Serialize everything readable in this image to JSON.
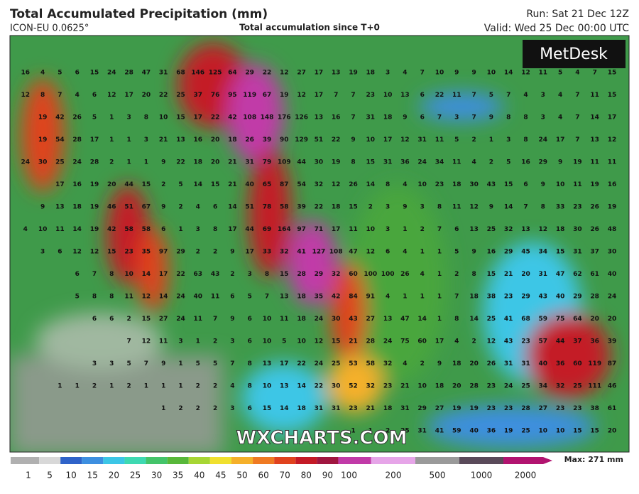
{
  "header": {
    "title": "Total Accumulated Precipitation (mm)",
    "model": "ICON-EU 0.0625°",
    "subtitle": "Total accumulation since T+0",
    "run": "Run: Sat 21 Dec 12Z",
    "valid": "Valid: Wed 25 Dec 00:00 UTC"
  },
  "logo": "MetDesk",
  "watermark": "WXCHARTS.COM",
  "grid": [
    [
      16,
      4,
      5,
      6,
      15,
      24,
      28,
      47,
      31,
      68,
      146,
      125,
      64,
      29,
      22,
      12,
      27,
      17,
      13,
      19,
      18,
      3,
      4,
      7,
      10,
      9,
      9,
      10,
      14,
      12,
      11,
      5,
      4,
      7,
      15
    ],
    [
      12,
      8,
      7,
      4,
      6,
      12,
      17,
      20,
      22,
      25,
      37,
      76,
      95,
      119,
      67,
      19,
      12,
      17,
      7,
      7,
      23,
      10,
      13,
      6,
      22,
      11,
      7,
      5,
      7,
      4,
      3,
      4,
      7,
      11,
      15
    ],
    [
      19,
      42,
      26,
      5,
      1,
      3,
      8,
      10,
      15,
      17,
      22,
      42,
      108,
      148,
      176,
      126,
      13,
      16,
      7,
      31,
      18,
      9,
      6,
      7,
      3,
      7,
      9,
      8,
      8,
      3,
      4,
      7,
      14,
      17
    ],
    [
      19,
      54,
      28,
      17,
      1,
      1,
      3,
      21,
      13,
      16,
      20,
      18,
      26,
      39,
      90,
      129,
      51,
      22,
      9,
      10,
      17,
      12,
      31,
      11,
      5,
      2,
      1,
      3,
      8,
      24,
      17,
      7,
      13,
      12
    ],
    [
      24,
      30,
      25,
      24,
      28,
      2,
      1,
      1,
      9,
      22,
      18,
      20,
      21,
      31,
      79,
      109,
      44,
      30,
      19,
      8,
      15,
      31,
      36,
      24,
      34,
      11,
      4,
      2,
      5,
      16,
      29,
      9,
      19,
      11,
      11
    ],
    [
      17,
      16,
      19,
      20,
      44,
      15,
      2,
      5,
      14,
      15,
      21,
      40,
      65,
      87,
      54,
      32,
      12,
      26,
      14,
      8,
      4,
      10,
      23,
      18,
      30,
      43,
      15,
      6,
      9,
      10,
      11,
      19,
      16
    ],
    [
      9,
      13,
      18,
      19,
      46,
      51,
      67,
      9,
      2,
      4,
      6,
      14,
      51,
      78,
      58,
      39,
      22,
      18,
      15,
      2,
      3,
      9,
      3,
      8,
      11,
      12,
      9,
      14,
      7,
      8,
      33,
      23,
      26,
      19
    ],
    [
      4,
      10,
      11,
      14,
      19,
      42,
      58,
      58,
      6,
      1,
      3,
      8,
      17,
      44,
      69,
      164,
      97,
      71,
      17,
      11,
      10,
      3,
      1,
      2,
      7,
      6,
      13,
      25,
      32,
      13,
      12,
      18,
      30,
      26,
      48
    ],
    [
      3,
      6,
      12,
      12,
      15,
      23,
      35,
      97,
      29,
      2,
      2,
      9,
      17,
      33,
      32,
      41,
      127,
      108,
      47,
      12,
      6,
      4,
      1,
      1,
      5,
      9,
      16,
      29,
      45,
      34,
      15,
      31,
      37,
      30
    ],
    [
      6,
      7,
      8,
      10,
      14,
      17,
      22,
      63,
      43,
      2,
      3,
      8,
      15,
      28,
      29,
      32,
      60,
      100,
      100,
      26,
      4,
      1,
      2,
      8,
      15,
      21,
      20,
      31,
      47,
      62,
      61,
      40
    ],
    [
      5,
      8,
      8,
      11,
      12,
      14,
      24,
      40,
      11,
      6,
      5,
      7,
      13,
      18,
      35,
      42,
      84,
      91,
      4,
      1,
      1,
      1,
      7,
      18,
      38,
      23,
      29,
      43,
      40,
      29,
      28,
      24
    ],
    [
      6,
      6,
      2,
      15,
      27,
      24,
      11,
      7,
      9,
      6,
      10,
      11,
      18,
      24,
      30,
      43,
      27,
      13,
      47,
      14,
      1,
      8,
      14,
      25,
      41,
      68,
      59,
      75,
      64,
      20,
      20
    ],
    [
      7,
      12,
      11,
      3,
      1,
      2,
      3,
      6,
      10,
      5,
      10,
      12,
      15,
      21,
      28,
      24,
      75,
      60,
      17,
      4,
      2,
      12,
      43,
      23,
      57,
      44,
      37,
      36,
      39
    ],
    [
      3,
      3,
      5,
      7,
      9,
      1,
      5,
      5,
      7,
      8,
      13,
      17,
      22,
      24,
      25,
      53,
      58,
      32,
      4,
      2,
      9,
      18,
      20,
      26,
      31,
      31,
      40,
      36,
      60,
      119,
      87
    ],
    [
      1,
      1,
      2,
      1,
      2,
      1,
      1,
      1,
      2,
      2,
      4,
      8,
      10,
      13,
      14,
      22,
      30,
      52,
      32,
      23,
      21,
      10,
      18,
      20,
      28,
      23,
      24,
      25,
      34,
      32,
      25,
      111,
      46
    ],
    [
      1,
      2,
      2,
      2,
      3,
      6,
      15,
      14,
      18,
      31,
      31,
      23,
      21,
      18,
      31,
      29,
      27,
      19,
      19,
      23,
      23,
      28,
      27,
      23,
      23,
      38,
      61
    ],
    [
      1,
      1,
      2,
      25,
      31,
      41,
      59,
      40,
      36,
      19,
      25,
      10,
      10,
      15,
      15,
      20
    ]
  ],
  "legend": {
    "max": "Max: 271 mm",
    "ticks": [
      1,
      5,
      10,
      15,
      20,
      25,
      30,
      35,
      40,
      45,
      50,
      60,
      70,
      80,
      90,
      100,
      200,
      500,
      1000,
      2000
    ],
    "colors": [
      "#b0b0b0",
      "#d8d8d8",
      "#2f63c9",
      "#3d8fe0",
      "#3cc6e6",
      "#3ed9b2",
      "#44c46a",
      "#58b83a",
      "#a7d634",
      "#f0e02e",
      "#f5b02a",
      "#ef7a23",
      "#e0421e",
      "#c41a26",
      "#a01640",
      "#c13aa8",
      "#e6a5e8",
      "#9a9a9a",
      "#5a4a5a",
      "#b21470"
    ]
  }
}
